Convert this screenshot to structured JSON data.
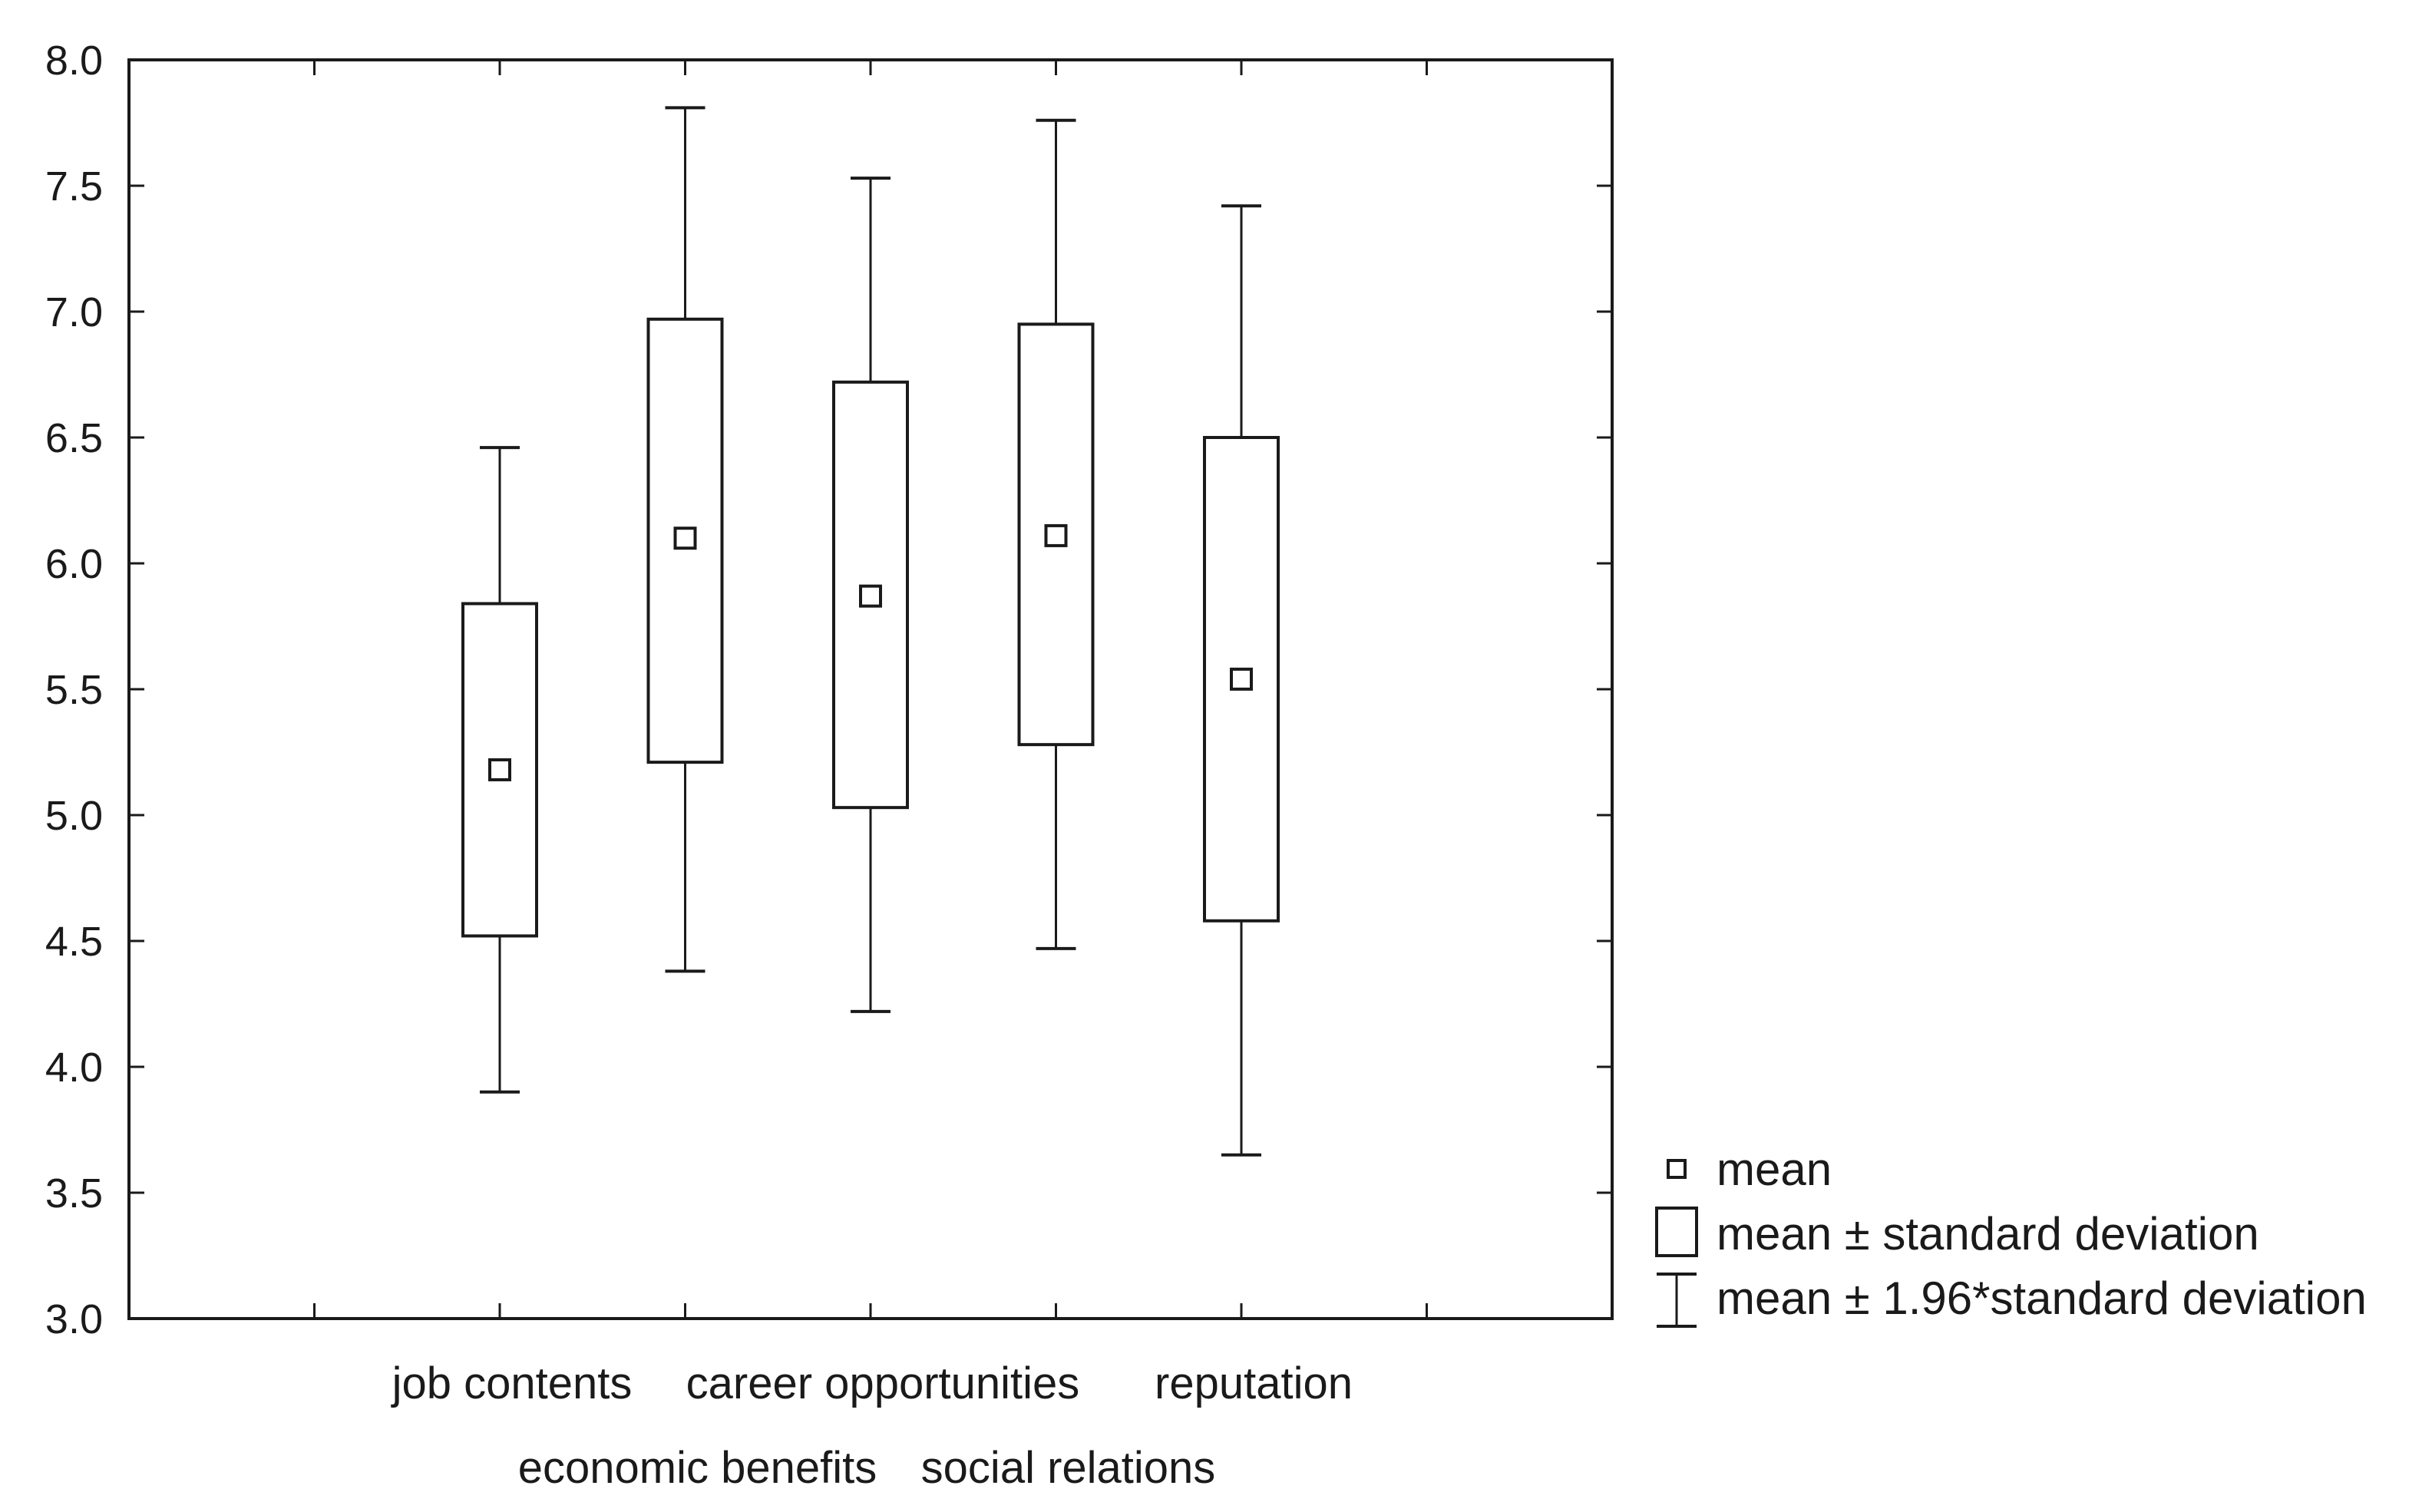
{
  "chart_data": {
    "type": "box",
    "title": "",
    "xlabel": "",
    "ylabel": "",
    "ylim": [
      3.0,
      8.0
    ],
    "yticks": [
      "3.0",
      "3.5",
      "4.0",
      "4.5",
      "5.0",
      "5.5",
      "6.0",
      "6.5",
      "7.0",
      "7.5",
      "8.0"
    ],
    "categories": [
      "job contents",
      "economic benefits",
      "career opportunities",
      "social relations",
      "reputation"
    ],
    "series": [
      {
        "mean": 5.18,
        "sd_low": 4.52,
        "sd_high": 5.84,
        "ci_low": 3.9,
        "ci_high": 6.46
      },
      {
        "mean": 6.1,
        "sd_low": 5.21,
        "sd_high": 6.97,
        "ci_low": 4.38,
        "ci_high": 7.81
      },
      {
        "mean": 5.87,
        "sd_low": 5.03,
        "sd_high": 6.72,
        "ci_low": 4.22,
        "ci_high": 7.53
      },
      {
        "mean": 6.11,
        "sd_low": 5.28,
        "sd_high": 6.95,
        "ci_low": 4.47,
        "ci_high": 7.76
      },
      {
        "mean": 5.54,
        "sd_low": 4.58,
        "sd_high": 6.5,
        "ci_low": 3.65,
        "ci_high": 7.42
      }
    ],
    "legend": {
      "position": "bottom-right, outside plot",
      "items": [
        "mean",
        "mean ± standard deviation",
        "mean ± 1.96*standard deviation"
      ]
    },
    "grid": false
  }
}
